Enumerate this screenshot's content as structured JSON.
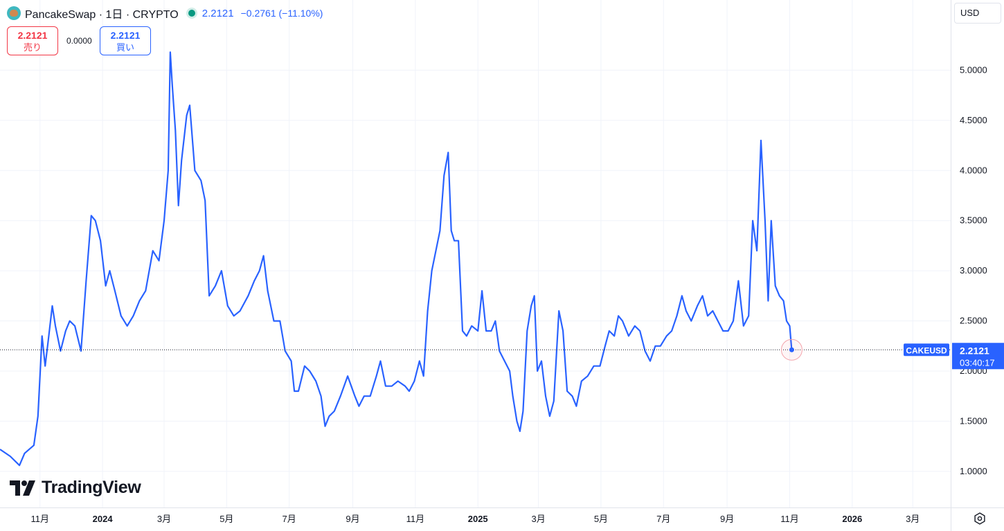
{
  "header": {
    "symbol_title": "PancakeSwap · 1日 · CRYPTO",
    "last_price": "2.2121",
    "change": "−0.2761 (−11.10%)",
    "status_color": "#089981",
    "logo_icon": "pancakeswap-bunny-icon"
  },
  "trade": {
    "sell_price": "2.2121",
    "sell_label": "売り",
    "spread": "0.0000",
    "buy_price": "2.2121",
    "buy_label": "買い"
  },
  "currency": "USD",
  "watermark": "TradingView",
  "line_color": "#2962ff",
  "chart_data": {
    "type": "line",
    "title": "",
    "xlabel": "",
    "ylabel": "",
    "ylim": [
      0.64,
      5.7
    ],
    "y_ticks": [
      "1.0000",
      "1.5000",
      "2.0000",
      "2.5000",
      "3.0000",
      "3.5000",
      "4.0000",
      "4.5000",
      "5.0000"
    ],
    "x_ticks": [
      {
        "label": "11月",
        "date": "2023-11-01",
        "bold": false
      },
      {
        "label": "2024",
        "date": "2024-01-01",
        "bold": true
      },
      {
        "label": "3月",
        "date": "2024-03-01",
        "bold": false
      },
      {
        "label": "5月",
        "date": "2024-05-01",
        "bold": false
      },
      {
        "label": "7月",
        "date": "2024-07-01",
        "bold": false
      },
      {
        "label": "9月",
        "date": "2024-09-01",
        "bold": false
      },
      {
        "label": "11月",
        "date": "2024-11-01",
        "bold": false
      },
      {
        "label": "2025",
        "date": "2025-01-01",
        "bold": true
      },
      {
        "label": "3月",
        "date": "2025-03-01",
        "bold": false
      },
      {
        "label": "5月",
        "date": "2025-05-01",
        "bold": false
      },
      {
        "label": "7月",
        "date": "2025-07-01",
        "bold": false
      },
      {
        "label": "9月",
        "date": "2025-09-01",
        "bold": false
      },
      {
        "label": "11月",
        "date": "2025-11-01",
        "bold": false
      },
      {
        "label": "2026",
        "date": "2026-01-01",
        "bold": true
      },
      {
        "label": "3月",
        "date": "2026-03-01",
        "bold": false
      }
    ],
    "grid": true,
    "x_range": [
      "2023-09-23",
      "2026-04-07"
    ],
    "series": [
      {
        "name": "CAKEUSD",
        "points": [
          [
            "2023-09-23",
            1.22
          ],
          [
            "2023-10-03",
            1.15
          ],
          [
            "2023-10-12",
            1.06
          ],
          [
            "2023-10-17",
            1.18
          ],
          [
            "2023-10-26",
            1.26
          ],
          [
            "2023-10-30",
            1.55
          ],
          [
            "2023-11-03",
            2.35
          ],
          [
            "2023-11-06",
            2.05
          ],
          [
            "2023-11-09",
            2.3
          ],
          [
            "2023-11-13",
            2.65
          ],
          [
            "2023-11-16",
            2.45
          ],
          [
            "2023-11-21",
            2.2
          ],
          [
            "2023-11-26",
            2.4
          ],
          [
            "2023-11-30",
            2.5
          ],
          [
            "2023-12-05",
            2.45
          ],
          [
            "2023-12-11",
            2.2
          ],
          [
            "2023-12-16",
            2.9
          ],
          [
            "2023-12-21",
            3.55
          ],
          [
            "2023-12-25",
            3.5
          ],
          [
            "2023-12-30",
            3.3
          ],
          [
            "2024-01-04",
            2.85
          ],
          [
            "2024-01-08",
            3.0
          ],
          [
            "2024-01-13",
            2.8
          ],
          [
            "2024-01-19",
            2.55
          ],
          [
            "2024-01-25",
            2.45
          ],
          [
            "2024-01-31",
            2.55
          ],
          [
            "2024-02-06",
            2.7
          ],
          [
            "2024-02-12",
            2.8
          ],
          [
            "2024-02-19",
            3.2
          ],
          [
            "2024-02-25",
            3.1
          ],
          [
            "2024-03-01",
            3.5
          ],
          [
            "2024-03-05",
            4.0
          ],
          [
            "2024-03-07",
            5.18
          ],
          [
            "2024-03-09",
            4.85
          ],
          [
            "2024-03-12",
            4.4
          ],
          [
            "2024-03-15",
            3.65
          ],
          [
            "2024-03-18",
            4.1
          ],
          [
            "2024-03-23",
            4.55
          ],
          [
            "2024-03-26",
            4.65
          ],
          [
            "2024-03-31",
            4.0
          ],
          [
            "2024-04-06",
            3.9
          ],
          [
            "2024-04-10",
            3.7
          ],
          [
            "2024-04-14",
            2.75
          ],
          [
            "2024-04-20",
            2.85
          ],
          [
            "2024-04-26",
            3.0
          ],
          [
            "2024-05-02",
            2.65
          ],
          [
            "2024-05-08",
            2.55
          ],
          [
            "2024-05-14",
            2.6
          ],
          [
            "2024-05-22",
            2.75
          ],
          [
            "2024-05-28",
            2.9
          ],
          [
            "2024-06-02",
            3.0
          ],
          [
            "2024-06-06",
            3.15
          ],
          [
            "2024-06-10",
            2.8
          ],
          [
            "2024-06-16",
            2.5
          ],
          [
            "2024-06-22",
            2.5
          ],
          [
            "2024-06-27",
            2.2
          ],
          [
            "2024-07-03",
            2.1
          ],
          [
            "2024-07-06",
            1.8
          ],
          [
            "2024-07-10",
            1.8
          ],
          [
            "2024-07-16",
            2.05
          ],
          [
            "2024-07-21",
            2.0
          ],
          [
            "2024-07-27",
            1.9
          ],
          [
            "2024-08-01",
            1.75
          ],
          [
            "2024-08-05",
            1.45
          ],
          [
            "2024-08-09",
            1.55
          ],
          [
            "2024-08-14",
            1.6
          ],
          [
            "2024-08-20",
            1.75
          ],
          [
            "2024-08-27",
            1.95
          ],
          [
            "2024-09-03",
            1.75
          ],
          [
            "2024-09-07",
            1.65
          ],
          [
            "2024-09-12",
            1.75
          ],
          [
            "2024-09-18",
            1.75
          ],
          [
            "2024-09-24",
            1.95
          ],
          [
            "2024-09-28",
            2.1
          ],
          [
            "2024-10-03",
            1.85
          ],
          [
            "2024-10-09",
            1.85
          ],
          [
            "2024-10-15",
            1.9
          ],
          [
            "2024-10-22",
            1.85
          ],
          [
            "2024-10-26",
            1.8
          ],
          [
            "2024-10-31",
            1.9
          ],
          [
            "2024-11-05",
            2.1
          ],
          [
            "2024-11-09",
            1.95
          ],
          [
            "2024-11-13",
            2.6
          ],
          [
            "2024-11-17",
            3.0
          ],
          [
            "2024-11-21",
            3.2
          ],
          [
            "2024-11-25",
            3.4
          ],
          [
            "2024-11-29",
            3.95
          ],
          [
            "2024-12-03",
            4.18
          ],
          [
            "2024-12-06",
            3.4
          ],
          [
            "2024-12-09",
            3.3
          ],
          [
            "2024-12-13",
            3.3
          ],
          [
            "2024-12-17",
            2.4
          ],
          [
            "2024-12-21",
            2.35
          ],
          [
            "2024-12-26",
            2.45
          ],
          [
            "2025-01-01",
            2.4
          ],
          [
            "2025-01-05",
            2.8
          ],
          [
            "2025-01-09",
            2.4
          ],
          [
            "2025-01-14",
            2.4
          ],
          [
            "2025-01-18",
            2.5
          ],
          [
            "2025-01-22",
            2.2
          ],
          [
            "2025-01-27",
            2.1
          ],
          [
            "2025-02-01",
            2.0
          ],
          [
            "2025-02-04",
            1.75
          ],
          [
            "2025-02-08",
            1.5
          ],
          [
            "2025-02-11",
            1.4
          ],
          [
            "2025-02-14",
            1.6
          ],
          [
            "2025-02-18",
            2.4
          ],
          [
            "2025-02-22",
            2.65
          ],
          [
            "2025-02-25",
            2.75
          ],
          [
            "2025-02-28",
            2.0
          ],
          [
            "2025-03-04",
            2.1
          ],
          [
            "2025-03-08",
            1.75
          ],
          [
            "2025-03-12",
            1.55
          ],
          [
            "2025-03-16",
            1.7
          ],
          [
            "2025-03-21",
            2.6
          ],
          [
            "2025-03-25",
            2.4
          ],
          [
            "2025-03-29",
            1.8
          ],
          [
            "2025-04-03",
            1.75
          ],
          [
            "2025-04-07",
            1.65
          ],
          [
            "2025-04-12",
            1.9
          ],
          [
            "2025-04-18",
            1.95
          ],
          [
            "2025-04-24",
            2.05
          ],
          [
            "2025-04-30",
            2.05
          ],
          [
            "2025-05-05",
            2.25
          ],
          [
            "2025-05-09",
            2.4
          ],
          [
            "2025-05-14",
            2.35
          ],
          [
            "2025-05-18",
            2.55
          ],
          [
            "2025-05-22",
            2.5
          ],
          [
            "2025-05-28",
            2.35
          ],
          [
            "2025-06-03",
            2.45
          ],
          [
            "2025-06-08",
            2.4
          ],
          [
            "2025-06-13",
            2.2
          ],
          [
            "2025-06-18",
            2.1
          ],
          [
            "2025-06-23",
            2.25
          ],
          [
            "2025-06-28",
            2.25
          ],
          [
            "2025-07-04",
            2.35
          ],
          [
            "2025-07-09",
            2.4
          ],
          [
            "2025-07-14",
            2.55
          ],
          [
            "2025-07-19",
            2.75
          ],
          [
            "2025-07-23",
            2.6
          ],
          [
            "2025-07-28",
            2.5
          ],
          [
            "2025-08-03",
            2.65
          ],
          [
            "2025-08-08",
            2.75
          ],
          [
            "2025-08-13",
            2.55
          ],
          [
            "2025-08-18",
            2.6
          ],
          [
            "2025-08-23",
            2.5
          ],
          [
            "2025-08-28",
            2.4
          ],
          [
            "2025-09-02",
            2.4
          ],
          [
            "2025-09-07",
            2.5
          ],
          [
            "2025-09-12",
            2.9
          ],
          [
            "2025-09-17",
            2.45
          ],
          [
            "2025-09-22",
            2.55
          ],
          [
            "2025-09-26",
            3.5
          ],
          [
            "2025-09-30",
            3.2
          ],
          [
            "2025-10-04",
            4.3
          ],
          [
            "2025-10-08",
            3.5
          ],
          [
            "2025-10-11",
            2.7
          ],
          [
            "2025-10-14",
            3.5
          ],
          [
            "2025-10-18",
            2.85
          ],
          [
            "2025-10-22",
            2.75
          ],
          [
            "2025-10-26",
            2.7
          ],
          [
            "2025-10-29",
            2.5
          ],
          [
            "2025-11-01",
            2.45
          ],
          [
            "2025-11-03",
            2.2121
          ]
        ]
      }
    ],
    "last_value": "2.2121",
    "last_label": "CAKEUSD",
    "countdown": "03:40:17"
  }
}
